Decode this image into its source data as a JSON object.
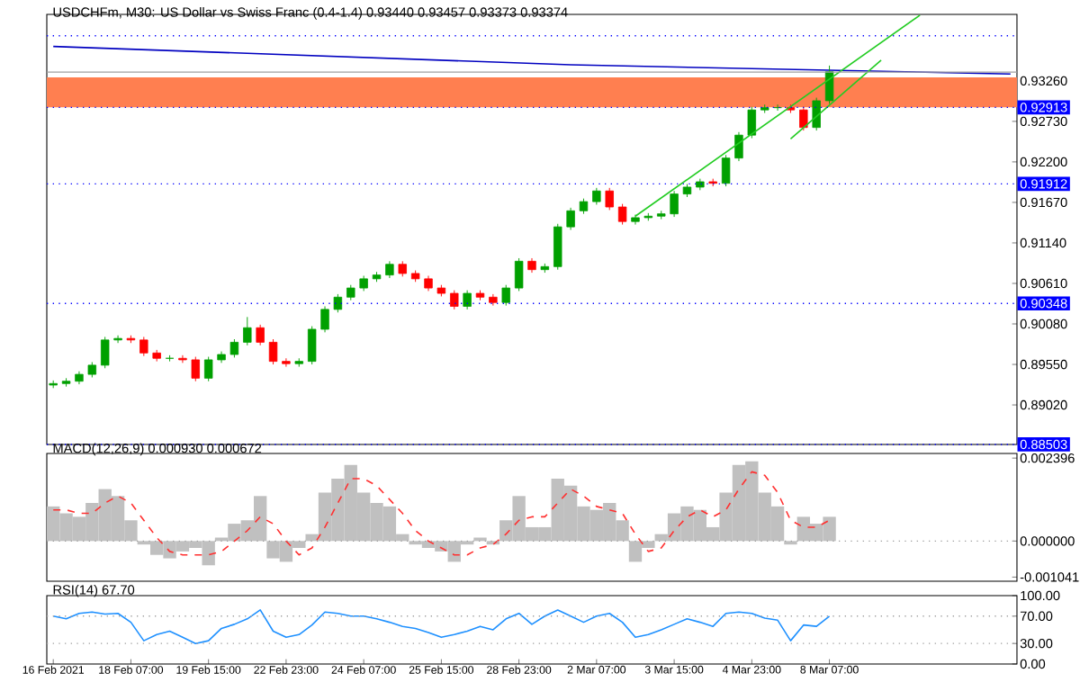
{
  "chart_data": [
    {
      "type": "candlestick",
      "title": "USDCHFm, M30:  US Dollar vs Swiss Franc (0.4-1.4)  0.93440 0.93457 0.93373 0.93374",
      "ylim": [
        0.88503,
        0.9413
      ],
      "tick_labels": "y",
      "categories": [
        null,
        null,
        null,
        null,
        null,
        null,
        null,
        null,
        null,
        null,
        null,
        null,
        null,
        null,
        null,
        null,
        null,
        null,
        null,
        null,
        null,
        null,
        null,
        null,
        null,
        null,
        null,
        null,
        null,
        null,
        null,
        null,
        null,
        null,
        null,
        null,
        null,
        null,
        null,
        null,
        null,
        null,
        null,
        null,
        null,
        null,
        null,
        null,
        null,
        null,
        null,
        null,
        null,
        null,
        null,
        null,
        null,
        null,
        null,
        null,
        null,
        null,
        null,
        null,
        null,
        null,
        null,
        null,
        null,
        null,
        null,
        null,
        null,
        null,
        null
      ],
      "yticks": [
        {
          "value": 0.9326,
          "label": "0.93260"
        },
        {
          "value": 0.9273,
          "label": "0.92730"
        },
        {
          "value": 0.922,
          "label": "0.92200"
        },
        {
          "value": 0.9167,
          "label": "0.91670"
        },
        {
          "value": 0.9114,
          "label": "0.91140"
        },
        {
          "value": 0.9061,
          "label": "0.90610"
        },
        {
          "value": 0.9008,
          "label": "0.90080"
        },
        {
          "value": 0.8955,
          "label": "0.89550"
        },
        {
          "value": 0.8902,
          "label": "0.89020"
        }
      ],
      "bands": [
        {
          "axis": "y",
          "from": 0.92913,
          "to": 0.93307,
          "color": "#ff7f50"
        }
      ],
      "ref_lines": [
        {
          "axis": "y",
          "value": 0.9385,
          "color": "#0000ff",
          "line_style": "dotted"
        },
        {
          "axis": "y",
          "value": 0.93374,
          "color": "#a0a0a0",
          "line_style": "solid"
        },
        {
          "axis": "y",
          "value": 0.92913,
          "label": "0.92913",
          "color": "#0000ff",
          "line_style": "dotted"
        },
        {
          "axis": "y",
          "value": 0.91912,
          "label": "0.91912",
          "color": "#0000ff",
          "line_style": "dotted"
        },
        {
          "axis": "y",
          "value": 0.90348,
          "label": "0.90348",
          "color": "#0000ff",
          "line_style": "dotted"
        },
        {
          "axis": "y",
          "value": 0.88503,
          "label": "0.88503",
          "color": "#0000ff",
          "line_style": "dotted"
        }
      ],
      "series": [
        {
          "type": "line",
          "color": "#0000c0",
          "values": [
            0.9371,
            null,
            null,
            null,
            null,
            null,
            null,
            null,
            null,
            null,
            null,
            null,
            null,
            null,
            null,
            null,
            null,
            null,
            null,
            null,
            null,
            null,
            null,
            null,
            null,
            null,
            null,
            null,
            null,
            null,
            null,
            null,
            null,
            null,
            null,
            null,
            null,
            null,
            null,
            null,
            0.9347,
            null,
            null,
            null,
            null,
            null,
            null,
            null,
            null,
            null,
            null,
            null,
            null,
            null,
            null,
            null,
            null,
            null,
            null,
            null,
            null,
            null,
            null,
            null,
            null,
            null,
            null,
            null,
            null,
            null,
            null,
            null,
            null,
            null,
            0.9335
          ]
        },
        {
          "ohlc": [
            [
              0.8928,
              0.8934,
              0.8924,
              0.893
            ],
            [
              0.893,
              0.8937,
              0.8926,
              0.8933
            ],
            [
              0.8933,
              0.8946,
              0.8929,
              0.8942
            ],
            [
              0.8942,
              0.8958,
              0.8938,
              0.8954
            ],
            [
              0.8954,
              0.8991,
              0.895,
              0.8987
            ],
            [
              0.8987,
              0.8993,
              0.8983,
              0.8989
            ],
            [
              0.8989,
              0.8993,
              0.8983,
              0.8987
            ],
            [
              0.8987,
              0.8991,
              0.8966,
              0.897
            ],
            [
              0.897,
              0.8974,
              0.8959,
              0.8963
            ],
            [
              0.8963,
              0.8967,
              0.8959,
              0.8963
            ],
            [
              0.8963,
              0.8967,
              0.8957,
              0.8961
            ],
            [
              0.8961,
              0.8965,
              0.8933,
              0.8937
            ],
            [
              0.8937,
              0.8965,
              0.8933,
              0.8961
            ],
            [
              0.8961,
              0.8972,
              0.8957,
              0.8968
            ],
            [
              0.8968,
              0.8988,
              0.8964,
              0.8984
            ],
            [
              0.8984,
              0.9017,
              0.898,
              0.9003
            ],
            [
              0.9003,
              0.9007,
              0.898,
              0.8984
            ],
            [
              0.8984,
              0.8988,
              0.8955,
              0.8959
            ],
            [
              0.8959,
              0.8963,
              0.8952,
              0.8956
            ],
            [
              0.8956,
              0.8963,
              0.8952,
              0.8959
            ],
            [
              0.8959,
              0.9005,
              0.8955,
              0.9001
            ],
            [
              0.9001,
              0.9031,
              0.8997,
              0.9027
            ],
            [
              0.9027,
              0.9047,
              0.9023,
              0.9043
            ],
            [
              0.9043,
              0.9059,
              0.9039,
              0.9055
            ],
            [
              0.9055,
              0.9071,
              0.9051,
              0.9067
            ],
            [
              0.9067,
              0.9076,
              0.9063,
              0.9072
            ],
            [
              0.9072,
              0.909,
              0.9068,
              0.9086
            ],
            [
              0.9086,
              0.909,
              0.907,
              0.9074
            ],
            [
              0.9074,
              0.9078,
              0.9063,
              0.9067
            ],
            [
              0.9067,
              0.9071,
              0.9051,
              0.9055
            ],
            [
              0.9055,
              0.9059,
              0.9044,
              0.9048
            ],
            [
              0.9048,
              0.9052,
              0.9027,
              0.9031
            ],
            [
              0.9031,
              0.9052,
              0.9027,
              0.9048
            ],
            [
              0.9048,
              0.9052,
              0.9039,
              0.9043
            ],
            [
              0.9043,
              0.9047,
              0.9032,
              0.9036
            ],
            [
              0.9036,
              0.9059,
              0.9032,
              0.9055
            ],
            [
              0.9055,
              0.9094,
              0.9051,
              0.909
            ],
            [
              0.909,
              0.9094,
              0.9075,
              0.9079
            ],
            [
              0.9079,
              0.9087,
              0.9075,
              0.9083
            ],
            [
              0.9083,
              0.9139,
              0.9079,
              0.9135
            ],
            [
              0.9135,
              0.916,
              0.9131,
              0.9156
            ],
            [
              0.9156,
              0.9172,
              0.9152,
              0.9168
            ],
            [
              0.9168,
              0.9186,
              0.9164,
              0.9182
            ],
            [
              0.9182,
              0.9186,
              0.9157,
              0.9161
            ],
            [
              0.9161,
              0.9165,
              0.9138,
              0.9142
            ],
            [
              0.9142,
              0.9151,
              0.9138,
              0.9147
            ],
            [
              0.9147,
              0.9153,
              0.9143,
              0.9149
            ],
            [
              0.9149,
              0.9156,
              0.9145,
              0.9152
            ],
            [
              0.9152,
              0.9182,
              0.9148,
              0.9178
            ],
            [
              0.9178,
              0.9191,
              0.9174,
              0.9187
            ],
            [
              0.9187,
              0.9198,
              0.9183,
              0.9194
            ],
            [
              0.9194,
              0.9198,
              0.9188,
              0.9192
            ],
            [
              0.9192,
              0.9229,
              0.9188,
              0.9225
            ],
            [
              0.9225,
              0.9259,
              0.9221,
              0.9255
            ],
            [
              0.9255,
              0.9292,
              0.9251,
              0.9288
            ],
            [
              0.9288,
              0.9295,
              0.9284,
              0.9291
            ],
            [
              0.9291,
              0.9295,
              0.9287,
              0.9291
            ],
            [
              0.9291,
              0.9295,
              0.9284,
              0.9288
            ],
            [
              0.9288,
              0.9292,
              0.9261,
              0.9265
            ],
            [
              0.9265,
              0.9304,
              0.9261,
              0.93
            ],
            [
              0.93,
              0.9346,
              0.9296,
              0.9338
            ],
            null,
            null,
            null,
            null,
            null,
            null,
            null,
            null,
            null,
            null,
            null,
            null,
            null,
            null
          ],
          "colors": [
            "#00a000",
            "#00a000",
            "#00a000",
            "#00a000",
            "#00a000",
            "#00a000",
            "#ff0000",
            "#ff0000",
            "#ff0000",
            "#00a000",
            "#ff0000",
            "#ff0000",
            "#00a000",
            "#00a000",
            "#00a000",
            "#00a000",
            "#ff0000",
            "#ff0000",
            "#ff0000",
            "#00a000",
            "#00a000",
            "#00a000",
            "#00a000",
            "#00a000",
            "#00a000",
            "#00a000",
            "#00a000",
            "#ff0000",
            "#ff0000",
            "#ff0000",
            "#ff0000",
            "#ff0000",
            "#00a000",
            "#ff0000",
            "#ff0000",
            "#00a000",
            "#00a000",
            "#ff0000",
            "#00a000",
            "#00a000",
            "#00a000",
            "#00a000",
            "#00a000",
            "#ff0000",
            "#ff0000",
            "#00a000",
            "#00a000",
            "#00a000",
            "#00a000",
            "#00a000",
            "#00a000",
            "#ff0000",
            "#00a000",
            "#00a000",
            "#00a000",
            "#00a000",
            "#00a000",
            "#ff0000",
            "#ff0000",
            "#00a000",
            "#00a000",
            null,
            null,
            null,
            null,
            null,
            null,
            null,
            null,
            null,
            null,
            null,
            null,
            null,
            null
          ]
        },
        {
          "type": "line",
          "color": "#22cc22",
          "values": [
            null,
            null,
            null,
            null,
            null,
            null,
            null,
            null,
            null,
            null,
            null,
            null,
            null,
            null,
            null,
            null,
            null,
            null,
            null,
            null,
            null,
            null,
            null,
            null,
            null,
            null,
            null,
            null,
            null,
            null,
            null,
            null,
            null,
            null,
            null,
            null,
            null,
            null,
            null,
            null,
            null,
            null,
            null,
            null,
            null,
            0.9149,
            null,
            null,
            null,
            null,
            null,
            null,
            null,
            null,
            null,
            null,
            null,
            null,
            null,
            null,
            null,
            null,
            null,
            null,
            null,
            null,
            null,
            0.9412,
            null,
            null,
            null,
            null,
            null,
            null,
            null
          ]
        },
        {
          "type": "line",
          "color": "#22cc22",
          "values": [
            null,
            null,
            null,
            null,
            null,
            null,
            null,
            null,
            null,
            null,
            null,
            null,
            null,
            null,
            null,
            null,
            null,
            null,
            null,
            null,
            null,
            null,
            null,
            null,
            null,
            null,
            null,
            null,
            null,
            null,
            null,
            null,
            null,
            null,
            null,
            null,
            null,
            null,
            null,
            null,
            null,
            null,
            null,
            null,
            null,
            null,
            null,
            null,
            null,
            null,
            null,
            null,
            null,
            null,
            null,
            null,
            null,
            0.925,
            null,
            null,
            null,
            null,
            null,
            null,
            0.9353,
            null,
            null,
            null,
            null,
            null,
            null,
            null,
            null,
            null,
            null
          ]
        }
      ]
    },
    {
      "type": "bar",
      "title": "MACD(12,26,9) 0.000930 0.000672",
      "ylim": [
        -0.00116,
        0.00253
      ],
      "tick_labels": "y",
      "categories": [
        null,
        null,
        null,
        null,
        null,
        null,
        null,
        null,
        null,
        null,
        null,
        null,
        null,
        null,
        null,
        null,
        null,
        null,
        null,
        null,
        null,
        null,
        null,
        null,
        null,
        null,
        null,
        null,
        null,
        null,
        null,
        null,
        null,
        null,
        null,
        null,
        null,
        null,
        null,
        null,
        null,
        null,
        null,
        null,
        null,
        null,
        null,
        null,
        null,
        null,
        null,
        null,
        null,
        null,
        null,
        null,
        null,
        null,
        null,
        null,
        null,
        null,
        null,
        null,
        null,
        null,
        null,
        null,
        null,
        null,
        null,
        null,
        null,
        null,
        null
      ],
      "yticks": [
        {
          "value": 0.002396,
          "label": "0.002396"
        },
        {
          "value": 0,
          "label": "0.000000"
        },
        {
          "value": -0.001041,
          "label": "-0.001041"
        }
      ],
      "ref_lines": [
        {
          "axis": "y",
          "value": 0,
          "color": "#a0a0a0",
          "line_style": "dotted"
        }
      ],
      "series": [
        {
          "color": "#c0c0c0",
          "values": [
            0.001,
            0.0008,
            0.0007,
            0.0011,
            0.0015,
            0.0013,
            0.0006,
            -0.0001,
            -0.0004,
            -0.0005,
            -0.0003,
            -0.0002,
            -0.0007,
            0.0001,
            0.0005,
            0.0006,
            0.0013,
            -0.0005,
            -0.0006,
            -0.0002,
            0.0002,
            0.0014,
            0.0018,
            0.0022,
            0.0014,
            0.0011,
            0.001,
            0.0002,
            -0.0001,
            -0.0002,
            -0.0003,
            -0.0006,
            -0.0001,
            0.0001,
            -0.0001,
            0.0006,
            0.0013,
            0.0004,
            0.0004,
            0.0018,
            0.0016,
            0.001,
            0.0009,
            0.0011,
            0.0006,
            -0.0006,
            -0.0002,
            0.0002,
            0.0008,
            0.001,
            0.0009,
            0.0004,
            0.0014,
            0.0022,
            0.0023,
            0.0014,
            0.001,
            -0.0001,
            0.0007,
            0.0005,
            0.0007,
            null,
            null,
            null,
            null,
            null,
            null,
            null,
            null,
            null,
            null,
            null,
            null,
            null,
            null
          ]
        },
        {
          "type": "line",
          "color": "#ff3030",
          "line_style": "dashed",
          "values": [
            0.0009,
            0.0009,
            0.0008,
            0.0008,
            0.0011,
            0.0013,
            0.0011,
            0.0006,
            0.0001,
            -0.0003,
            -0.0004,
            -0.0004,
            -0.0004,
            -0.0003,
            0.0,
            0.0003,
            0.0007,
            0.0005,
            0.0,
            -0.0004,
            -0.0002,
            0.0004,
            0.0011,
            0.0018,
            0.0018,
            0.0016,
            0.0012,
            0.0008,
            0.0003,
            0.0,
            -0.0002,
            -0.0004,
            -0.0004,
            -0.0002,
            -0.0001,
            0.0002,
            0.0006,
            0.0007,
            0.0007,
            0.0011,
            0.0015,
            0.0013,
            0.001,
            0.0009,
            0.0008,
            0.0002,
            -0.0003,
            -0.0002,
            0.0003,
            0.0007,
            0.0009,
            0.0007,
            0.0009,
            0.0015,
            0.002,
            0.0019,
            0.0014,
            0.0006,
            0.0004,
            0.0004,
            0.0006,
            null,
            null,
            null,
            null,
            null,
            null,
            null,
            null,
            null,
            null,
            null,
            null,
            null,
            null
          ]
        }
      ]
    },
    {
      "type": "line",
      "title": "RSI(14) 67.70",
      "ylim": [
        0,
        100
      ],
      "categories": [
        "16 Feb 2021",
        null,
        null,
        null,
        null,
        null,
        "18 Feb 07:00",
        null,
        null,
        null,
        null,
        null,
        "19 Feb 15:00",
        null,
        null,
        null,
        null,
        null,
        "22 Feb 23:00",
        null,
        null,
        null,
        null,
        null,
        "24 Feb 07:00",
        null,
        null,
        null,
        null,
        null,
        "25 Feb 15:00",
        null,
        null,
        null,
        null,
        null,
        "28 Feb 23:00",
        null,
        null,
        null,
        null,
        null,
        "2 Mar 07:00",
        null,
        null,
        null,
        null,
        null,
        "3 Mar 15:00",
        null,
        null,
        null,
        null,
        null,
        "4 Mar 23:00",
        null,
        null,
        null,
        null,
        null,
        "8 Mar 07:00",
        null,
        null,
        null,
        null,
        null,
        null,
        null,
        null,
        null,
        null,
        null,
        null,
        null,
        null
      ],
      "yticks": [
        {
          "value": 100,
          "label": "100.00"
        },
        {
          "value": 70,
          "label": "70.00"
        },
        {
          "value": 30,
          "label": "30.00"
        },
        {
          "value": 0,
          "label": "0.00"
        }
      ],
      "ref_lines": [
        {
          "axis": "y",
          "value": 70,
          "color": "#a0a0a0",
          "line_style": "dotted"
        },
        {
          "axis": "y",
          "value": 30,
          "color": "#a0a0a0",
          "line_style": "dotted"
        }
      ],
      "series": [
        {
          "color": "#1e90ff",
          "values": [
            70,
            66,
            74,
            76,
            73,
            74,
            61,
            34,
            43,
            48,
            39,
            30,
            34,
            52,
            58,
            66,
            79,
            48,
            39,
            43,
            57,
            76,
            74,
            70,
            70,
            66,
            61,
            55,
            52,
            46,
            39,
            43,
            48,
            55,
            50,
            66,
            74,
            58,
            70,
            79,
            70,
            61,
            70,
            74,
            61,
            39,
            43,
            50,
            58,
            66,
            61,
            55,
            74,
            76,
            74,
            67,
            64,
            34,
            57,
            55,
            70,
            null,
            null,
            null,
            null,
            null,
            null,
            null,
            null,
            null,
            null,
            null,
            null,
            null,
            null
          ]
        }
      ]
    }
  ]
}
